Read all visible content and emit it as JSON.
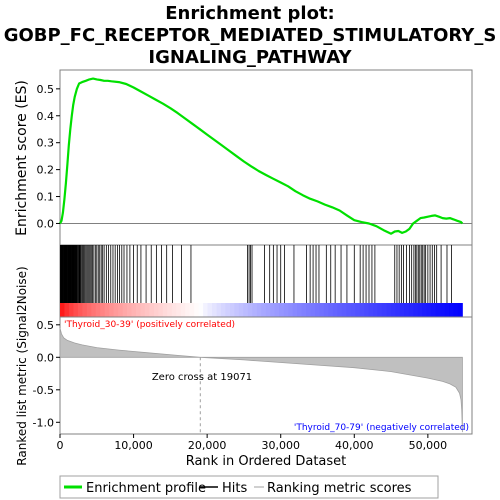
{
  "chart_data": {
    "type": "line",
    "title_lines": [
      "Enrichment plot:",
      "GOBP_FC_RECEPTOR_MEDIATED_STIMULATORY_S",
      "IGNALING_PATHWAY"
    ],
    "es_panel": {
      "ylabel": "Enrichment score (ES)",
      "ylim": [
        -0.08,
        0.57
      ],
      "yticks": [
        0.0,
        0.1,
        0.2,
        0.3,
        0.4,
        0.5
      ],
      "ytick_labels": [
        "0.0",
        "0.1",
        "0.2",
        "0.3",
        "0.4",
        "0.5"
      ],
      "series": [
        {
          "name": "Enrichment profile",
          "color": "#00e000",
          "x": [
            0,
            200,
            400,
            600,
            800,
            1000,
            1200,
            1400,
            1600,
            1800,
            2000,
            2300,
            2600,
            3000,
            3500,
            4000,
            4500,
            5000,
            5500,
            6000,
            6500,
            7000,
            8000,
            9000,
            10000,
            11000,
            12000,
            13000,
            14000,
            15000,
            16000,
            17000,
            18000,
            19000,
            20000,
            21000,
            22000,
            23000,
            24000,
            25000,
            26000,
            27000,
            28000,
            29000,
            30000,
            31000,
            32000,
            33000,
            34000,
            35000,
            36000,
            37000,
            38000,
            39000,
            40000,
            41000,
            42000,
            43000,
            44000,
            45000,
            45500,
            46000,
            46500,
            47000,
            47500,
            48000,
            48500,
            49000,
            49500,
            50000,
            50500,
            51000,
            51500,
            52000,
            52500,
            53000,
            53500,
            54000,
            54500,
            54700
          ],
          "y": [
            0.0,
            0.01,
            0.04,
            0.09,
            0.15,
            0.22,
            0.29,
            0.35,
            0.4,
            0.44,
            0.47,
            0.5,
            0.52,
            0.525,
            0.53,
            0.535,
            0.538,
            0.535,
            0.533,
            0.53,
            0.53,
            0.528,
            0.525,
            0.518,
            0.505,
            0.49,
            0.475,
            0.46,
            0.445,
            0.428,
            0.41,
            0.39,
            0.37,
            0.35,
            0.33,
            0.31,
            0.29,
            0.27,
            0.25,
            0.23,
            0.212,
            0.195,
            0.18,
            0.166,
            0.152,
            0.138,
            0.12,
            0.105,
            0.092,
            0.082,
            0.07,
            0.06,
            0.048,
            0.03,
            0.012,
            0.005,
            0.0,
            -0.01,
            -0.025,
            -0.038,
            -0.03,
            -0.028,
            -0.035,
            -0.03,
            -0.02,
            0.0,
            0.01,
            0.02,
            0.022,
            0.025,
            0.028,
            0.03,
            0.025,
            0.02,
            0.018,
            0.02,
            0.015,
            0.01,
            0.005,
            0.0
          ]
        }
      ]
    },
    "hits_panel": {
      "hit_color": "#000000",
      "hits": [
        60,
        110,
        160,
        210,
        260,
        310,
        360,
        420,
        480,
        540,
        600,
        660,
        720,
        780,
        840,
        900,
        960,
        1020,
        1080,
        1140,
        1200,
        1260,
        1320,
        1380,
        1440,
        1500,
        1560,
        1620,
        1680,
        1740,
        1800,
        1860,
        1920,
        1980,
        2040,
        2100,
        2160,
        2220,
        2300,
        2400,
        2500,
        2600,
        2700,
        2800,
        2900,
        3050,
        3200,
        3350,
        3500,
        3650,
        3800,
        3950,
        4100,
        4250,
        4400,
        4600,
        4800,
        5000,
        5200,
        5400,
        5600,
        5800,
        6000,
        6300,
        6600,
        6900,
        7200,
        7500,
        7800,
        8100,
        8400,
        8700,
        9100,
        9500,
        10000,
        10500,
        11000,
        11700,
        12400,
        13100,
        13800,
        14500,
        15300,
        16500,
        17800,
        25500,
        25700,
        25900,
        26100,
        27800,
        28500,
        29000,
        29500,
        30000,
        30500,
        31800,
        33500,
        34000,
        34400,
        34800,
        35200,
        36200,
        36800,
        37400,
        38200,
        39000,
        40000,
        40800,
        41200,
        41600,
        42000,
        42400,
        42800,
        45500,
        45800,
        46100,
        46400,
        46700,
        47100,
        47500,
        47800,
        48100,
        48300,
        48500,
        48700,
        48900,
        49100,
        49300,
        49500,
        49700,
        50000,
        50300,
        50600,
        50900,
        51200,
        51800,
        52600,
        53200
      ]
    },
    "metric_panel": {
      "ylabel": "Ranked list metric (Signal2Noise)",
      "xlabel": "Rank in Ordered Dataset",
      "ylim": [
        -1.18,
        0.62
      ],
      "yticks": [
        0.5,
        0.0,
        -0.5,
        -1.0
      ],
      "ytick_labels": [
        "0.5",
        "0.0",
        "-0.5",
        "-1.0"
      ],
      "xlim": [
        0,
        56000
      ],
      "xticks": [
        0,
        10000,
        20000,
        30000,
        40000,
        50000
      ],
      "xtick_labels": [
        "0",
        "10,000",
        "20,000",
        "30,000",
        "40,000",
        "50,000"
      ],
      "fill_color": "#c0c0c0",
      "zero_cross": 19071,
      "zero_cross_label": "Zero cross at 19071",
      "pos_label": "'Thyroid_30-39' (positively correlated)",
      "pos_color": "#ff0000",
      "neg_label": "'Thyroid_70-79' (negatively correlated)",
      "neg_color": "#0000ff",
      "n_genes": 54700,
      "curve_x": [
        0,
        200,
        500,
        1000,
        2000,
        3000,
        5000,
        8000,
        12000,
        16000,
        19071,
        25000,
        30000,
        35000,
        40000,
        45000,
        48000,
        50000,
        52000,
        53000,
        53800,
        54300,
        54500,
        54600,
        54700
      ],
      "curve_y": [
        0.45,
        0.36,
        0.3,
        0.26,
        0.22,
        0.19,
        0.15,
        0.11,
        0.07,
        0.03,
        0.0,
        -0.04,
        -0.08,
        -0.12,
        -0.16,
        -0.22,
        -0.28,
        -0.32,
        -0.37,
        -0.41,
        -0.46,
        -0.55,
        -0.65,
        -0.8,
        -1.15
      ]
    },
    "legend": [
      {
        "label": "Enrichment profile",
        "color": "#00e000",
        "kind": "line"
      },
      {
        "label": "Hits",
        "color": "#000000",
        "kind": "line"
      },
      {
        "label": "Ranking metric scores",
        "color": "#c0c0c0",
        "kind": "line"
      }
    ]
  }
}
